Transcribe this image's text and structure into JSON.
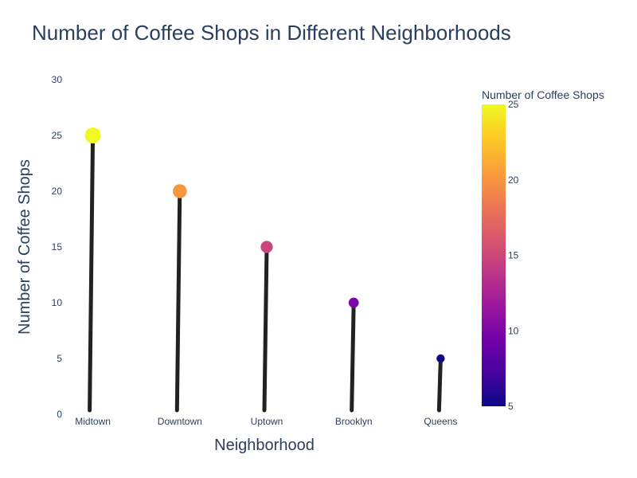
{
  "chart_data": {
    "type": "lollipop",
    "title": "Number of Coffee Shops in Different Neighborhoods",
    "xlabel": "Neighborhood",
    "ylabel": "Number of Coffee Shops",
    "categories": [
      "Midtown",
      "Downtown",
      "Uptown",
      "Brooklyn",
      "Queens"
    ],
    "values": [
      25,
      20,
      15,
      10,
      5
    ],
    "ylim": [
      0,
      30
    ],
    "yticks": [
      0,
      5,
      10,
      15,
      20,
      25,
      30
    ],
    "grid": false,
    "stem_color": "#222222",
    "colorscale": "plasma",
    "colorbar": {
      "title": "Number of Coffee Shops",
      "range": [
        5,
        25
      ],
      "ticks": [
        5,
        10,
        15,
        20,
        25
      ]
    }
  }
}
